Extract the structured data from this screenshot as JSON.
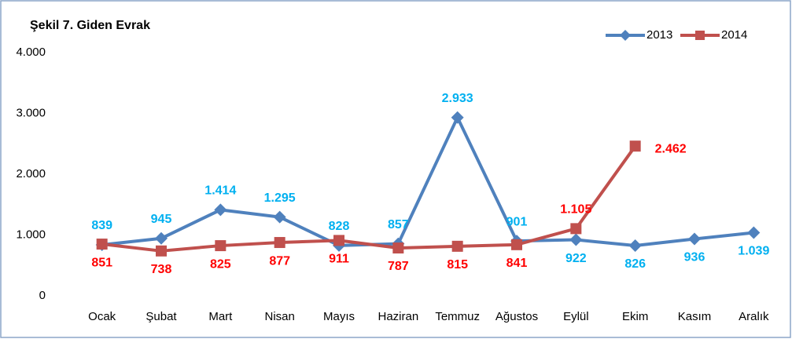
{
  "chart_data": {
    "type": "line",
    "title": "Şekil 7. Giden Evrak",
    "categories": [
      "Ocak",
      "Şubat",
      "Mart",
      "Nisan",
      "Mayıs",
      "Haziran",
      "Temmuz",
      "Ağustos",
      "Eylül",
      "Ekim",
      "Kasım",
      "Aralık"
    ],
    "series": [
      {
        "name": "2013",
        "color": "#4f81bd",
        "label_color": "#00b0f0",
        "marker": "diamond",
        "values": [
          839,
          945,
          1414,
          1295,
          828,
          857,
          2933,
          901,
          922,
          826,
          936,
          1039
        ],
        "value_labels": [
          "839",
          "945",
          "1.414",
          "1.295",
          "828",
          "857",
          "2.933",
          "901",
          "922",
          "826",
          "936",
          "1.039"
        ]
      },
      {
        "name": "2014",
        "color": "#c0504d",
        "label_color": "#ff0000",
        "marker": "square",
        "values": [
          851,
          738,
          825,
          877,
          911,
          787,
          815,
          841,
          1105,
          2462,
          null,
          null
        ],
        "value_labels": [
          "851",
          "738",
          "825",
          "877",
          "911",
          "787",
          "815",
          "841",
          "1.105",
          "2.462",
          null,
          null
        ]
      }
    ],
    "ylim": [
      0,
      4000
    ],
    "yticks": [
      0,
      {
        "value": 1000,
        "label": "1.000"
      },
      {
        "value": 2000,
        "label": "2.000"
      },
      {
        "value": 3000,
        "label": "3.000"
      },
      {
        "value": 4000,
        "label": "4.000"
      }
    ],
    "grid": false,
    "legend": "top-right"
  }
}
